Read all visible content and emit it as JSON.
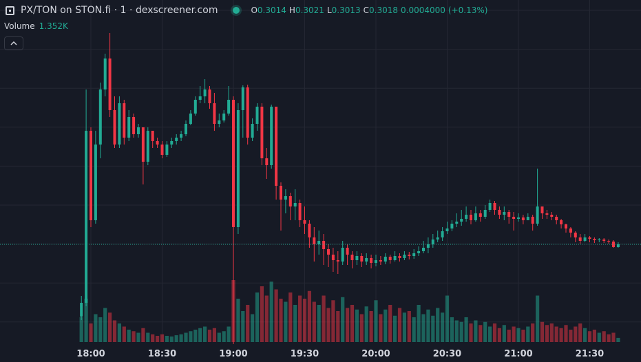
{
  "chart_data": {
    "type": "candlestick",
    "title": "PX/TON on STON.fi · 1 · dexscreener.com",
    "ohlc_letters": [
      "O",
      "H",
      "L",
      "C"
    ],
    "change_text": [
      "0.0004000",
      "(+0.13%)"
    ],
    "volume_title": "Volume",
    "volume_last_text": "1.352K",
    "up_color": "#22ab94",
    "down_color": "#f23645",
    "ylim": [
      0.2847,
      0.3373
    ],
    "vlim": [
      0,
      30000
    ],
    "xticks": [
      "18:00",
      "18:30",
      "19:00",
      "19:30",
      "20:00",
      "20:30",
      "21:00",
      "21:30"
    ],
    "x": [
      "17:56",
      "17:58",
      "18:00",
      "18:02",
      "18:04",
      "18:06",
      "18:08",
      "18:10",
      "18:12",
      "18:14",
      "18:16",
      "18:18",
      "18:20",
      "18:22",
      "18:24",
      "18:26",
      "18:28",
      "18:30",
      "18:32",
      "18:34",
      "18:36",
      "18:38",
      "18:40",
      "18:42",
      "18:44",
      "18:46",
      "18:48",
      "18:50",
      "18:52",
      "18:54",
      "18:56",
      "18:58",
      "19:00",
      "19:02",
      "19:04",
      "19:06",
      "19:08",
      "19:10",
      "19:12",
      "19:14",
      "19:16",
      "19:18",
      "19:20",
      "19:22",
      "19:24",
      "19:26",
      "19:28",
      "19:30",
      "19:32",
      "19:34",
      "19:36",
      "19:38",
      "19:40",
      "19:42",
      "19:44",
      "19:46",
      "19:48",
      "19:50",
      "19:52",
      "19:54",
      "19:56",
      "19:58",
      "20:00",
      "20:02",
      "20:04",
      "20:06",
      "20:08",
      "20:10",
      "20:12",
      "20:14",
      "20:16",
      "20:18",
      "20:20",
      "20:22",
      "20:24",
      "20:26",
      "20:28",
      "20:30",
      "20:32",
      "20:34",
      "20:36",
      "20:38",
      "20:40",
      "20:42",
      "20:44",
      "20:46",
      "20:48",
      "20:50",
      "20:52",
      "20:54",
      "20:56",
      "20:58",
      "21:00",
      "21:02",
      "21:04",
      "21:06",
      "21:08",
      "21:10",
      "21:12",
      "21:14",
      "21:16",
      "21:18",
      "21:20",
      "21:22",
      "21:24",
      "21:26",
      "21:28",
      "21:30",
      "21:32",
      "21:34",
      "21:36",
      "21:38",
      "21:40",
      "21:42"
    ],
    "open": [
      0.2913,
      0.2933,
      0.3183,
      0.3053,
      0.3163,
      0.3243,
      0.3288,
      0.3213,
      0.3163,
      0.3223,
      0.3173,
      0.3203,
      0.3178,
      0.3188,
      0.3138,
      0.3183,
      0.3168,
      0.3163,
      0.3148,
      0.3163,
      0.3168,
      0.3173,
      0.3178,
      0.3193,
      0.3208,
      0.3228,
      0.3233,
      0.3243,
      0.3223,
      0.3193,
      0.3198,
      0.3208,
      0.3228,
      0.3043,
      0.3213,
      0.3246,
      0.3173,
      0.3193,
      0.3218,
      0.3143,
      0.3133,
      0.3218,
      0.3103,
      0.3083,
      0.3088,
      0.3073,
      0.3078,
      0.3053,
      0.3048,
      0.3028,
      0.3018,
      0.3023,
      0.3011,
      0.3003,
      0.2995,
      0.2993,
      0.3013,
      0.3003,
      0.2995,
      0.3001,
      0.2993,
      0.2998,
      0.2991,
      0.2995,
      0.2993,
      0.3,
      0.2995,
      0.3001,
      0.2998,
      0.3003,
      0.3001,
      0.3005,
      0.3008,
      0.3013,
      0.3018,
      0.3025,
      0.3028,
      0.3037,
      0.3041,
      0.3048,
      0.3051,
      0.3055,
      0.3061,
      0.3053,
      0.3063,
      0.3058,
      0.3068,
      0.3078,
      0.3068,
      0.3061,
      0.3065,
      0.3058,
      0.3055,
      0.3057,
      0.3053,
      0.3058,
      0.3048,
      0.3073,
      0.3063,
      0.3061,
      0.3058,
      0.3053,
      0.3047,
      0.3041,
      0.3035,
      0.3028,
      0.3023,
      0.3028,
      0.3026,
      0.3024,
      0.3025,
      0.3023,
      0.3022,
      0.3014
    ],
    "high": [
      0.2943,
      0.3243,
      0.3188,
      0.3183,
      0.3253,
      0.3295,
      0.3325,
      0.3233,
      0.3233,
      0.3228,
      0.3213,
      0.3208,
      0.3193,
      0.3188,
      0.3188,
      0.3183,
      0.3173,
      0.3168,
      0.3168,
      0.3173,
      0.3178,
      0.3183,
      0.3198,
      0.3213,
      0.3233,
      0.3248,
      0.3258,
      0.3248,
      0.3238,
      0.3208,
      0.3213,
      0.3248,
      0.3233,
      0.3223,
      0.3249,
      0.325,
      0.3201,
      0.3223,
      0.3223,
      0.3158,
      0.3221,
      0.3218,
      0.3108,
      0.3098,
      0.3093,
      0.3098,
      0.3083,
      0.3073,
      0.3053,
      0.3043,
      0.3038,
      0.3033,
      0.3018,
      0.3013,
      0.3008,
      0.3023,
      0.3018,
      0.3008,
      0.3008,
      0.3005,
      0.3005,
      0.3003,
      0.3003,
      0.3001,
      0.3005,
      0.3003,
      0.3008,
      0.3005,
      0.3008,
      0.3007,
      0.3011,
      0.3015,
      0.3023,
      0.3028,
      0.3033,
      0.3038,
      0.3043,
      0.3051,
      0.3053,
      0.3063,
      0.3068,
      0.3073,
      0.3068,
      0.3073,
      0.3068,
      0.3075,
      0.3083,
      0.3081,
      0.3073,
      0.3073,
      0.3068,
      0.3065,
      0.3063,
      0.3061,
      0.3063,
      0.3061,
      0.3128,
      0.3073,
      0.3068,
      0.3065,
      0.3061,
      0.3055,
      0.3048,
      0.3043,
      0.3037,
      0.3033,
      0.3033,
      0.303,
      0.3028,
      0.3027,
      0.3027,
      0.3025,
      0.3024,
      0.3021
    ],
    "low": [
      0.2908,
      0.2928,
      0.3043,
      0.3048,
      0.3143,
      0.3233,
      0.3203,
      0.3158,
      0.3158,
      0.3163,
      0.3168,
      0.3173,
      0.3173,
      0.3105,
      0.3133,
      0.3158,
      0.3158,
      0.3143,
      0.3145,
      0.3158,
      0.3163,
      0.3168,
      0.3175,
      0.3191,
      0.3205,
      0.3223,
      0.3223,
      0.3215,
      0.3183,
      0.3188,
      0.3195,
      0.3205,
      0.2873,
      0.3033,
      0.3173,
      0.3163,
      0.3168,
      0.3183,
      0.3133,
      0.3113,
      0.3128,
      0.3083,
      0.3038,
      0.3063,
      0.3053,
      0.3053,
      0.3043,
      0.3033,
      0.3013,
      0.2993,
      0.3003,
      0.2988,
      0.2985,
      0.2978,
      0.2975,
      0.2988,
      0.2988,
      0.2983,
      0.2988,
      0.2985,
      0.2988,
      0.2983,
      0.2986,
      0.2988,
      0.2989,
      0.299,
      0.2993,
      0.2993,
      0.2995,
      0.2996,
      0.2997,
      0.3001,
      0.3005,
      0.3005,
      0.3013,
      0.3021,
      0.3023,
      0.3033,
      0.3037,
      0.3043,
      0.3045,
      0.3051,
      0.3047,
      0.3051,
      0.3051,
      0.3055,
      0.3065,
      0.3061,
      0.3055,
      0.3053,
      0.3048,
      0.3038,
      0.3051,
      0.3047,
      0.3053,
      0.3038,
      0.3045,
      0.3055,
      0.3055,
      0.3053,
      0.3047,
      0.3041,
      0.3035,
      0.3028,
      0.3021,
      0.3019,
      0.3021,
      0.3021,
      0.302,
      0.3021,
      0.302,
      0.3019,
      0.3013,
      0.3013
    ],
    "close": [
      0.2933,
      0.3183,
      0.3053,
      0.3163,
      0.3243,
      0.3288,
      0.3213,
      0.3163,
      0.3223,
      0.3173,
      0.3203,
      0.3178,
      0.3188,
      0.3138,
      0.3183,
      0.3168,
      0.3163,
      0.3148,
      0.3163,
      0.3168,
      0.3173,
      0.3178,
      0.3193,
      0.3208,
      0.3228,
      0.3233,
      0.3243,
      0.3223,
      0.3193,
      0.3198,
      0.3208,
      0.3228,
      0.3043,
      0.3213,
      0.3246,
      0.3173,
      0.3193,
      0.3218,
      0.3143,
      0.3133,
      0.3218,
      0.3103,
      0.3083,
      0.3088,
      0.3073,
      0.3078,
      0.3053,
      0.3048,
      0.3028,
      0.3018,
      0.3023,
      0.3011,
      0.3003,
      0.2995,
      0.2993,
      0.3013,
      0.3003,
      0.2995,
      0.3001,
      0.2993,
      0.2998,
      0.2991,
      0.2995,
      0.2993,
      0.3,
      0.2995,
      0.3001,
      0.2998,
      0.3003,
      0.3001,
      0.3005,
      0.3008,
      0.3013,
      0.3018,
      0.3025,
      0.3028,
      0.3037,
      0.3041,
      0.3048,
      0.3051,
      0.3055,
      0.3061,
      0.3053,
      0.3063,
      0.3058,
      0.3068,
      0.3078,
      0.3068,
      0.3061,
      0.3065,
      0.3058,
      0.3055,
      0.3057,
      0.3053,
      0.3058,
      0.3048,
      0.3073,
      0.3063,
      0.3061,
      0.3058,
      0.3053,
      0.3047,
      0.3041,
      0.3035,
      0.3028,
      0.3023,
      0.3028,
      0.3026,
      0.3024,
      0.3025,
      0.3023,
      0.3022,
      0.3014,
      0.3018
    ],
    "volume": [
      8000,
      14000,
      6000,
      9000,
      8000,
      11000,
      9500,
      7000,
      6000,
      5000,
      4000,
      3500,
      3000,
      4500,
      3000,
      2500,
      2000,
      2500,
      2000,
      1800,
      2200,
      2500,
      3000,
      3500,
      4000,
      4500,
      5000,
      4000,
      4500,
      3000,
      3500,
      5000,
      20000,
      14000,
      10000,
      12000,
      9000,
      16000,
      18000,
      15000,
      19500,
      17000,
      14000,
      13000,
      16000,
      12000,
      15000,
      14000,
      16500,
      13000,
      12000,
      15000,
      11000,
      13500,
      10000,
      14500,
      11000,
      12000,
      10500,
      9000,
      11500,
      10000,
      13500,
      9000,
      10500,
      12000,
      8500,
      11000,
      9500,
      10000,
      8000,
      12000,
      9000,
      10500,
      8500,
      11000,
      9500,
      15000,
      8000,
      7000,
      6500,
      8000,
      6000,
      7000,
      5500,
      6500,
      5000,
      6000,
      4500,
      5500,
      4000,
      5000,
      4500,
      4000,
      5000,
      6000,
      15000,
      6500,
      5500,
      6000,
      5000,
      4500,
      5500,
      4000,
      5000,
      6000,
      4500,
      3500,
      4000,
      3000,
      3500,
      2500,
      3000,
      1352
    ]
  }
}
